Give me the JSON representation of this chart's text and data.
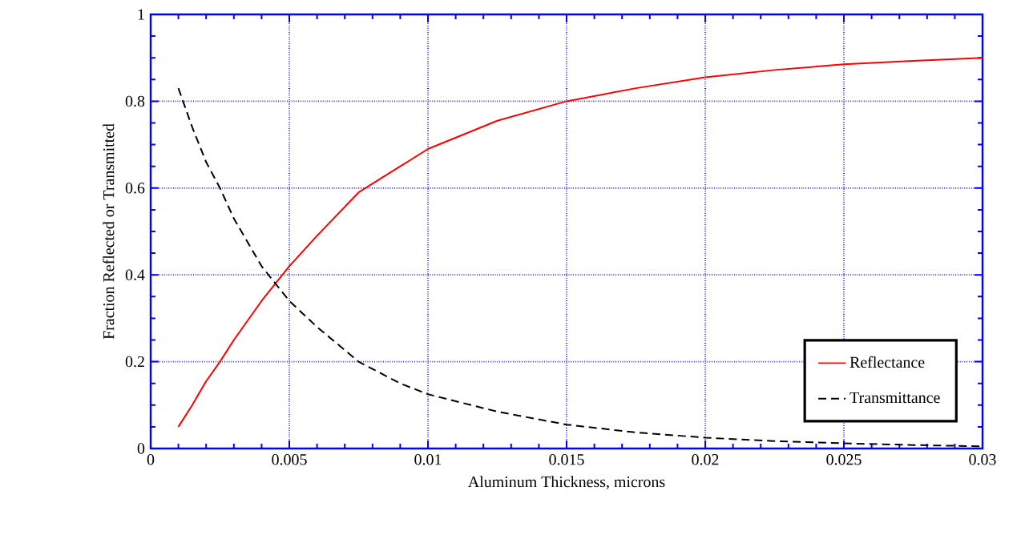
{
  "chart_data": {
    "type": "line",
    "xlabel": "Aluminum Thickness, microns",
    "ylabel": "Fraction Reflected or Transmitted",
    "xlim": [
      0,
      0.03
    ],
    "xticks": [
      0,
      0.005,
      0.01,
      0.015,
      0.02,
      0.025,
      0.03
    ],
    "ylim": [
      0,
      1
    ],
    "yticks": [
      0,
      0.2,
      0.4,
      0.6,
      0.8,
      1
    ],
    "grid": true,
    "legend": "bottom right",
    "marker": "none",
    "series": [
      {
        "name": "Reflectance",
        "color": "#ff0000",
        "line_style": "solid",
        "x": [
          0.001,
          0.0015,
          0.002,
          0.0025,
          0.003,
          0.004,
          0.005,
          0.006,
          0.0075,
          0.009,
          0.01,
          0.0125,
          0.015,
          0.0175,
          0.02,
          0.0225,
          0.025,
          0.0275,
          0.03
        ],
        "values": [
          0.05,
          0.1,
          0.155,
          0.2,
          0.25,
          0.34,
          0.42,
          0.49,
          0.59,
          0.65,
          0.69,
          0.755,
          0.8,
          0.83,
          0.855,
          0.872,
          0.885,
          0.893,
          0.9
        ]
      },
      {
        "name": "Transmittance",
        "color": "#000000",
        "line_style": "dashed",
        "x": [
          0.001,
          0.0015,
          0.002,
          0.0025,
          0.003,
          0.004,
          0.005,
          0.006,
          0.0075,
          0.009,
          0.01,
          0.0125,
          0.015,
          0.0175,
          0.02,
          0.0225,
          0.025,
          0.0275,
          0.03
        ],
        "values": [
          0.83,
          0.74,
          0.66,
          0.6,
          0.53,
          0.42,
          0.34,
          0.28,
          0.2,
          0.15,
          0.125,
          0.085,
          0.055,
          0.037,
          0.025,
          0.017,
          0.012,
          0.008,
          0.005
        ]
      }
    ]
  }
}
